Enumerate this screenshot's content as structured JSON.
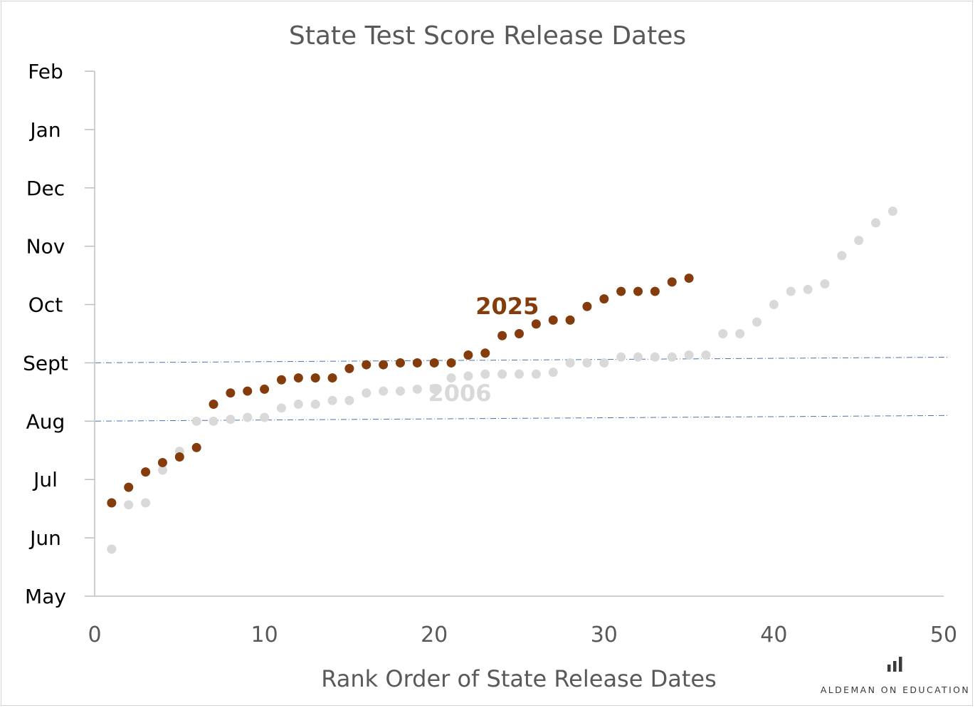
{
  "chart_data": {
    "type": "scatter",
    "title": "State Test Score Release Dates",
    "xlabel": "Rank Order of State Release Dates",
    "ylabel": "",
    "xlim": [
      0,
      50
    ],
    "ylim": [
      "May",
      "Feb"
    ],
    "x_ticks": [
      "0",
      "10",
      "20",
      "30",
      "40",
      "50"
    ],
    "y_ticks": [
      "May",
      "Jun",
      "Jul",
      "Aug",
      "Sept",
      "Oct",
      "Nov",
      "Dec",
      "Jan",
      "Feb"
    ],
    "reference_lines": [
      "Aug",
      "Sept"
    ],
    "grid": false,
    "series": [
      {
        "name": "2006",
        "color": "#d9d9d9",
        "label_color": "#d9d9d9",
        "x": [
          1,
          2,
          3,
          4,
          5,
          6,
          7,
          8,
          9,
          10,
          11,
          12,
          13,
          14,
          15,
          16,
          17,
          18,
          19,
          20,
          21,
          22,
          23,
          24,
          25,
          26,
          27,
          28,
          29,
          30,
          31,
          32,
          33,
          34,
          35,
          36,
          37,
          38,
          39,
          40,
          41,
          42,
          43,
          44,
          45,
          46,
          47
        ],
        "y": [
          "2006-05-26",
          "2006-06-18",
          "2006-06-19",
          "2006-07-06",
          "2006-07-16",
          "2006-08-01",
          "2006-08-01",
          "2006-08-02",
          "2006-08-03",
          "2006-08-03",
          "2006-08-08",
          "2006-08-10",
          "2006-08-10",
          "2006-08-12",
          "2006-08-12",
          "2006-08-16",
          "2006-08-17",
          "2006-08-17",
          "2006-08-18",
          "2006-08-18",
          "2006-08-24",
          "2006-08-25",
          "2006-08-26",
          "2006-08-26",
          "2006-08-26",
          "2006-08-26",
          "2006-08-27",
          "2006-09-01",
          "2006-09-01",
          "2006-09-01",
          "2006-09-04",
          "2006-09-04",
          "2006-09-04",
          "2006-09-04",
          "2006-09-05",
          "2006-09-05",
          "2006-09-16",
          "2006-09-16",
          "2006-09-22",
          "2006-10-01",
          "2006-10-08",
          "2006-10-09",
          "2006-10-12",
          "2006-10-27",
          "2006-11-04",
          "2006-11-13",
          "2006-11-19"
        ]
      },
      {
        "name": "2025",
        "color": "#843c0c",
        "label_color": "#843c0c",
        "x": [
          1,
          2,
          3,
          4,
          5,
          6,
          7,
          8,
          9,
          10,
          11,
          12,
          13,
          14,
          15,
          16,
          17,
          18,
          19,
          20,
          21,
          22,
          23,
          24,
          25,
          26,
          27,
          28,
          29,
          30,
          31,
          32,
          33,
          34,
          35
        ],
        "y": [
          "2025-06-19",
          "2025-06-27",
          "2025-07-05",
          "2025-07-10",
          "2025-07-13",
          "2025-07-18",
          "2025-08-10",
          "2025-08-16",
          "2025-08-17",
          "2025-08-18",
          "2025-08-23",
          "2025-08-24",
          "2025-08-24",
          "2025-08-24",
          "2025-08-29",
          "2025-08-31",
          "2025-08-31",
          "2025-09-01",
          "2025-09-01",
          "2025-09-01",
          "2025-09-01",
          "2025-09-05",
          "2025-09-06",
          "2025-09-15",
          "2025-09-16",
          "2025-09-21",
          "2025-09-23",
          "2025-09-23",
          "2025-09-30",
          "2025-10-04",
          "2025-10-08",
          "2025-10-08",
          "2025-10-08",
          "2025-10-13",
          "2025-10-15"
        ]
      }
    ]
  },
  "branding": {
    "text": "ALDEMAN ON EDUCATION",
    "icon": "bar-chart-icon",
    "color": "#3a3a3a"
  }
}
